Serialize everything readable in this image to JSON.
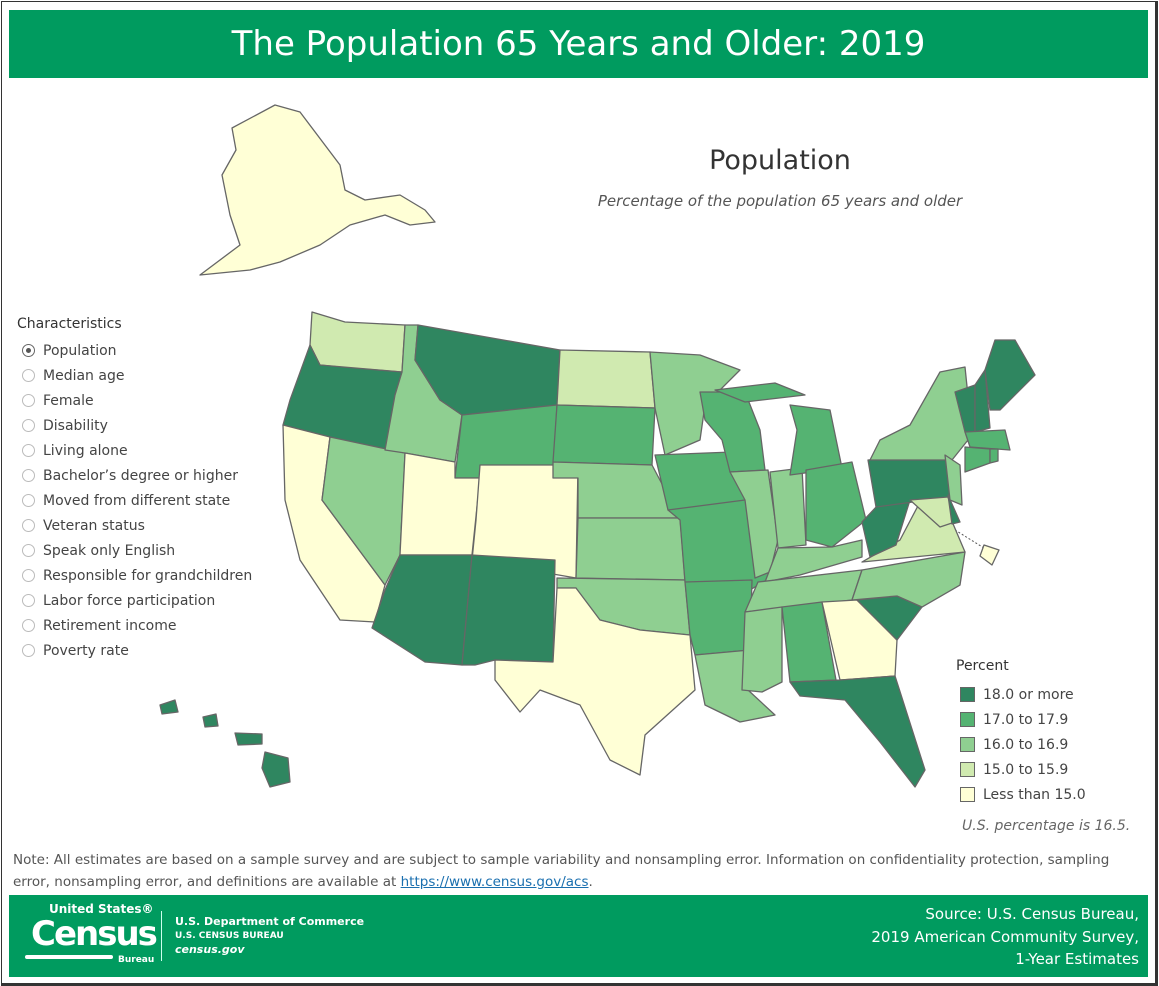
{
  "title": "The Population 65 Years and Older: 2019",
  "map": {
    "title": "Population",
    "subtitle": "Percentage of the population 65 years and older"
  },
  "characteristics": {
    "heading": "Characteristics",
    "selected": "Population",
    "options": [
      "Population",
      "Median age",
      "Female",
      "Disability",
      "Living alone",
      "Bachelor’s degree or higher",
      "Moved from different state",
      "Veteran status",
      "Speak only English",
      "Responsible for grandchildren",
      "Labor force participation",
      "Retirement income",
      "Poverty rate"
    ]
  },
  "legend": {
    "title": "Percent",
    "items": [
      {
        "label": "18.0 or more",
        "color": "#2f8660"
      },
      {
        "label": "17.0 to 17.9",
        "color": "#55b372"
      },
      {
        "label": "16.0 to 16.9",
        "color": "#8fcf91"
      },
      {
        "label": "15.0 to 15.9",
        "color": "#d0eab0"
      },
      {
        "label": "Less than 15.0",
        "color": "#ffffd6"
      }
    ],
    "us_note": "U.S. percentage is 16.5."
  },
  "states": {
    "OR": 0,
    "MT": 0,
    "AZ": 0,
    "NM": 0,
    "ME": 0,
    "VT": 0,
    "NH": 0,
    "PA": 0,
    "WV": 0,
    "DE": 0,
    "FL": 0,
    "SC": 0,
    "HI": 0,
    "WY": 1,
    "SD": 1,
    "IA": 1,
    "MO": 1,
    "AR": 1,
    "AL": 1,
    "WI": 1,
    "MI": 1,
    "OH": 1,
    "MA": 1,
    "CT": 1,
    "RI": 1,
    "ID": 2,
    "NV": 2,
    "NE": 2,
    "KS": 2,
    "OK": 2,
    "MN": 2,
    "IL": 2,
    "IN": 2,
    "KY": 2,
    "TN": 2,
    "NC": 2,
    "MS": 2,
    "LA": 2,
    "NY": 2,
    "NJ": 2,
    "WA": 3,
    "ND": 3,
    "VA": 3,
    "MD": 3,
    "AK": 4,
    "CA": 4,
    "UT": 4,
    "CO": 4,
    "TX": 4,
    "GA": 4,
    "DC": 4
  },
  "note": {
    "text": "Note: All estimates are based on a sample survey and are subject to sample variability and nonsampling error. Information on confidentiality protection, sampling error, nonsampling error, and definitions are available at ",
    "link": "https://www.census.gov/acs",
    "end": "."
  },
  "footer": {
    "logo": {
      "top": "United States®",
      "main": "Census",
      "bottom": "Bureau"
    },
    "dept": "U.S. Department of Commerce",
    "bureau": "U.S. CENSUS BUREAU",
    "site": "census.gov",
    "source": [
      "Source: U.S. Census Bureau,",
      "2019 American Community Survey,",
      "1-Year Estimates"
    ]
  }
}
